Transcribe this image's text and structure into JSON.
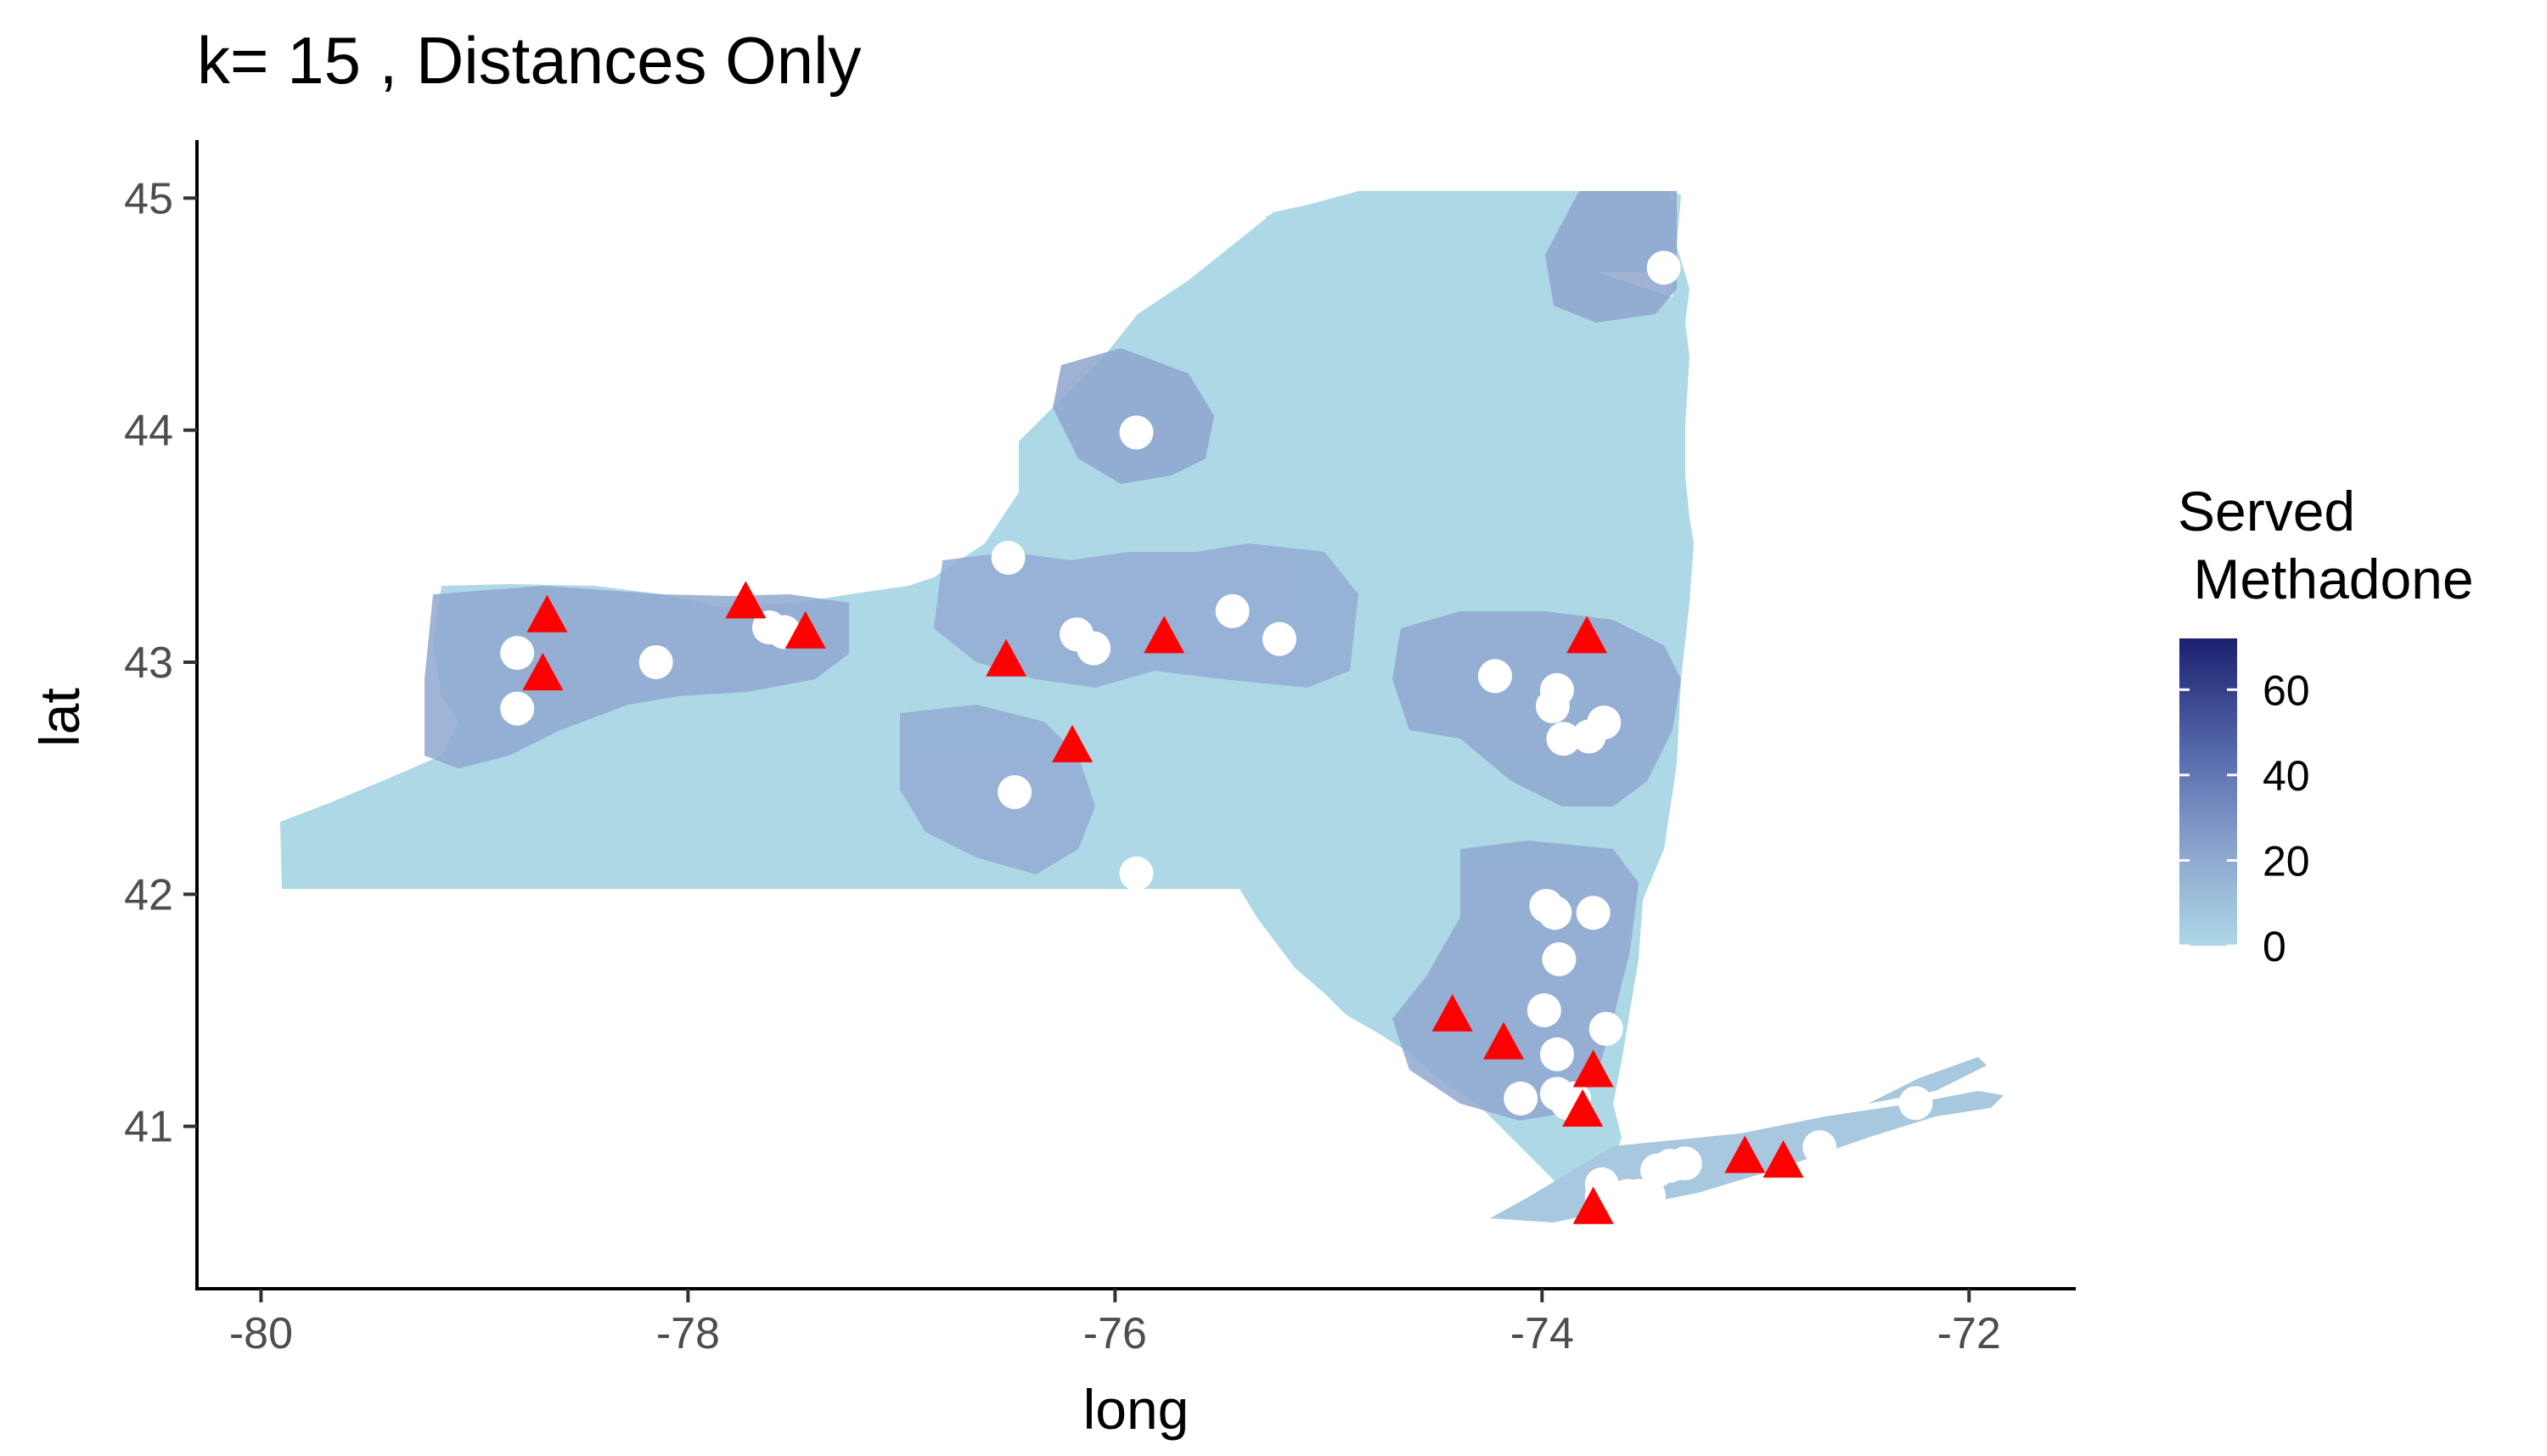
{
  "chart_data": {
    "type": "scatter",
    "title": "k= 15 , Distances Only",
    "xlabel": "long",
    "ylabel": "lat",
    "xlim": [
      -80.3,
      -71.5
    ],
    "ylim": [
      40.3,
      45.25
    ],
    "x_ticks": [
      -80,
      -78,
      -76,
      -74,
      -72
    ],
    "x_tick_labels": [
      "-80",
      "-78",
      "-76",
      "-74",
      "-72"
    ],
    "y_ticks": [
      41,
      42,
      43,
      44,
      45
    ],
    "y_tick_labels": [
      "41",
      "42",
      "43",
      "44",
      "45"
    ],
    "grid": false,
    "legend": {
      "title_line1": "Served",
      "title_line2": " Methadone",
      "position": "right",
      "range": [
        0,
        72
      ],
      "ticks": [
        0,
        20,
        40,
        60
      ],
      "tick_labels": [
        "0",
        "20",
        "40",
        "60"
      ],
      "color_low": "#add8e6",
      "color_high": "#1a2070"
    },
    "series": [
      {
        "marker": "triangle",
        "color": "#ff0000",
        "points": [
          [
            -78.66,
            43.19
          ],
          [
            -78.68,
            42.94
          ],
          [
            -77.73,
            43.25
          ],
          [
            -77.45,
            43.12
          ],
          [
            -76.51,
            43.0
          ],
          [
            -76.2,
            42.63
          ],
          [
            -75.77,
            43.1
          ],
          [
            -73.79,
            43.1
          ],
          [
            -74.42,
            41.47
          ],
          [
            -74.18,
            41.35
          ],
          [
            -73.76,
            41.23
          ],
          [
            -73.81,
            41.06
          ],
          [
            -73.05,
            40.86
          ],
          [
            -72.87,
            40.84
          ],
          [
            -73.76,
            40.64
          ]
        ]
      },
      {
        "marker": "circle",
        "color": "#ffffff",
        "points": [
          [
            -73.43,
            44.7
          ],
          [
            -75.9,
            43.99
          ],
          [
            -76.5,
            43.45
          ],
          [
            -75.45,
            43.22
          ],
          [
            -75.23,
            43.1
          ],
          [
            -76.18,
            43.12
          ],
          [
            -76.1,
            43.06
          ],
          [
            -77.62,
            43.15
          ],
          [
            -77.55,
            43.13
          ],
          [
            -78.15,
            43.0
          ],
          [
            -78.8,
            43.04
          ],
          [
            -78.8,
            42.8
          ],
          [
            -74.22,
            42.94
          ],
          [
            -73.93,
            42.88
          ],
          [
            -73.95,
            42.81
          ],
          [
            -73.71,
            42.74
          ],
          [
            -73.78,
            42.68
          ],
          [
            -73.9,
            42.67
          ],
          [
            -76.47,
            42.44
          ],
          [
            -75.9,
            42.09
          ],
          [
            -73.98,
            41.95
          ],
          [
            -73.94,
            41.92
          ],
          [
            -73.76,
            41.92
          ],
          [
            -73.92,
            41.72
          ],
          [
            -73.99,
            41.5
          ],
          [
            -73.7,
            41.42
          ],
          [
            -73.93,
            41.31
          ],
          [
            -73.93,
            41.14
          ],
          [
            -73.85,
            41.12
          ],
          [
            -74.1,
            41.12
          ],
          [
            -73.88,
            41.1
          ],
          [
            -73.33,
            40.84
          ],
          [
            -73.4,
            40.83
          ],
          [
            -73.46,
            40.81
          ],
          [
            -73.72,
            40.75
          ],
          [
            -73.6,
            40.7
          ],
          [
            -73.5,
            40.7
          ],
          [
            -73.55,
            40.7
          ],
          [
            -73.72,
            40.7
          ],
          [
            -73.65,
            40.68
          ],
          [
            -72.7,
            40.91
          ],
          [
            -72.25,
            41.1
          ]
        ]
      }
    ]
  }
}
